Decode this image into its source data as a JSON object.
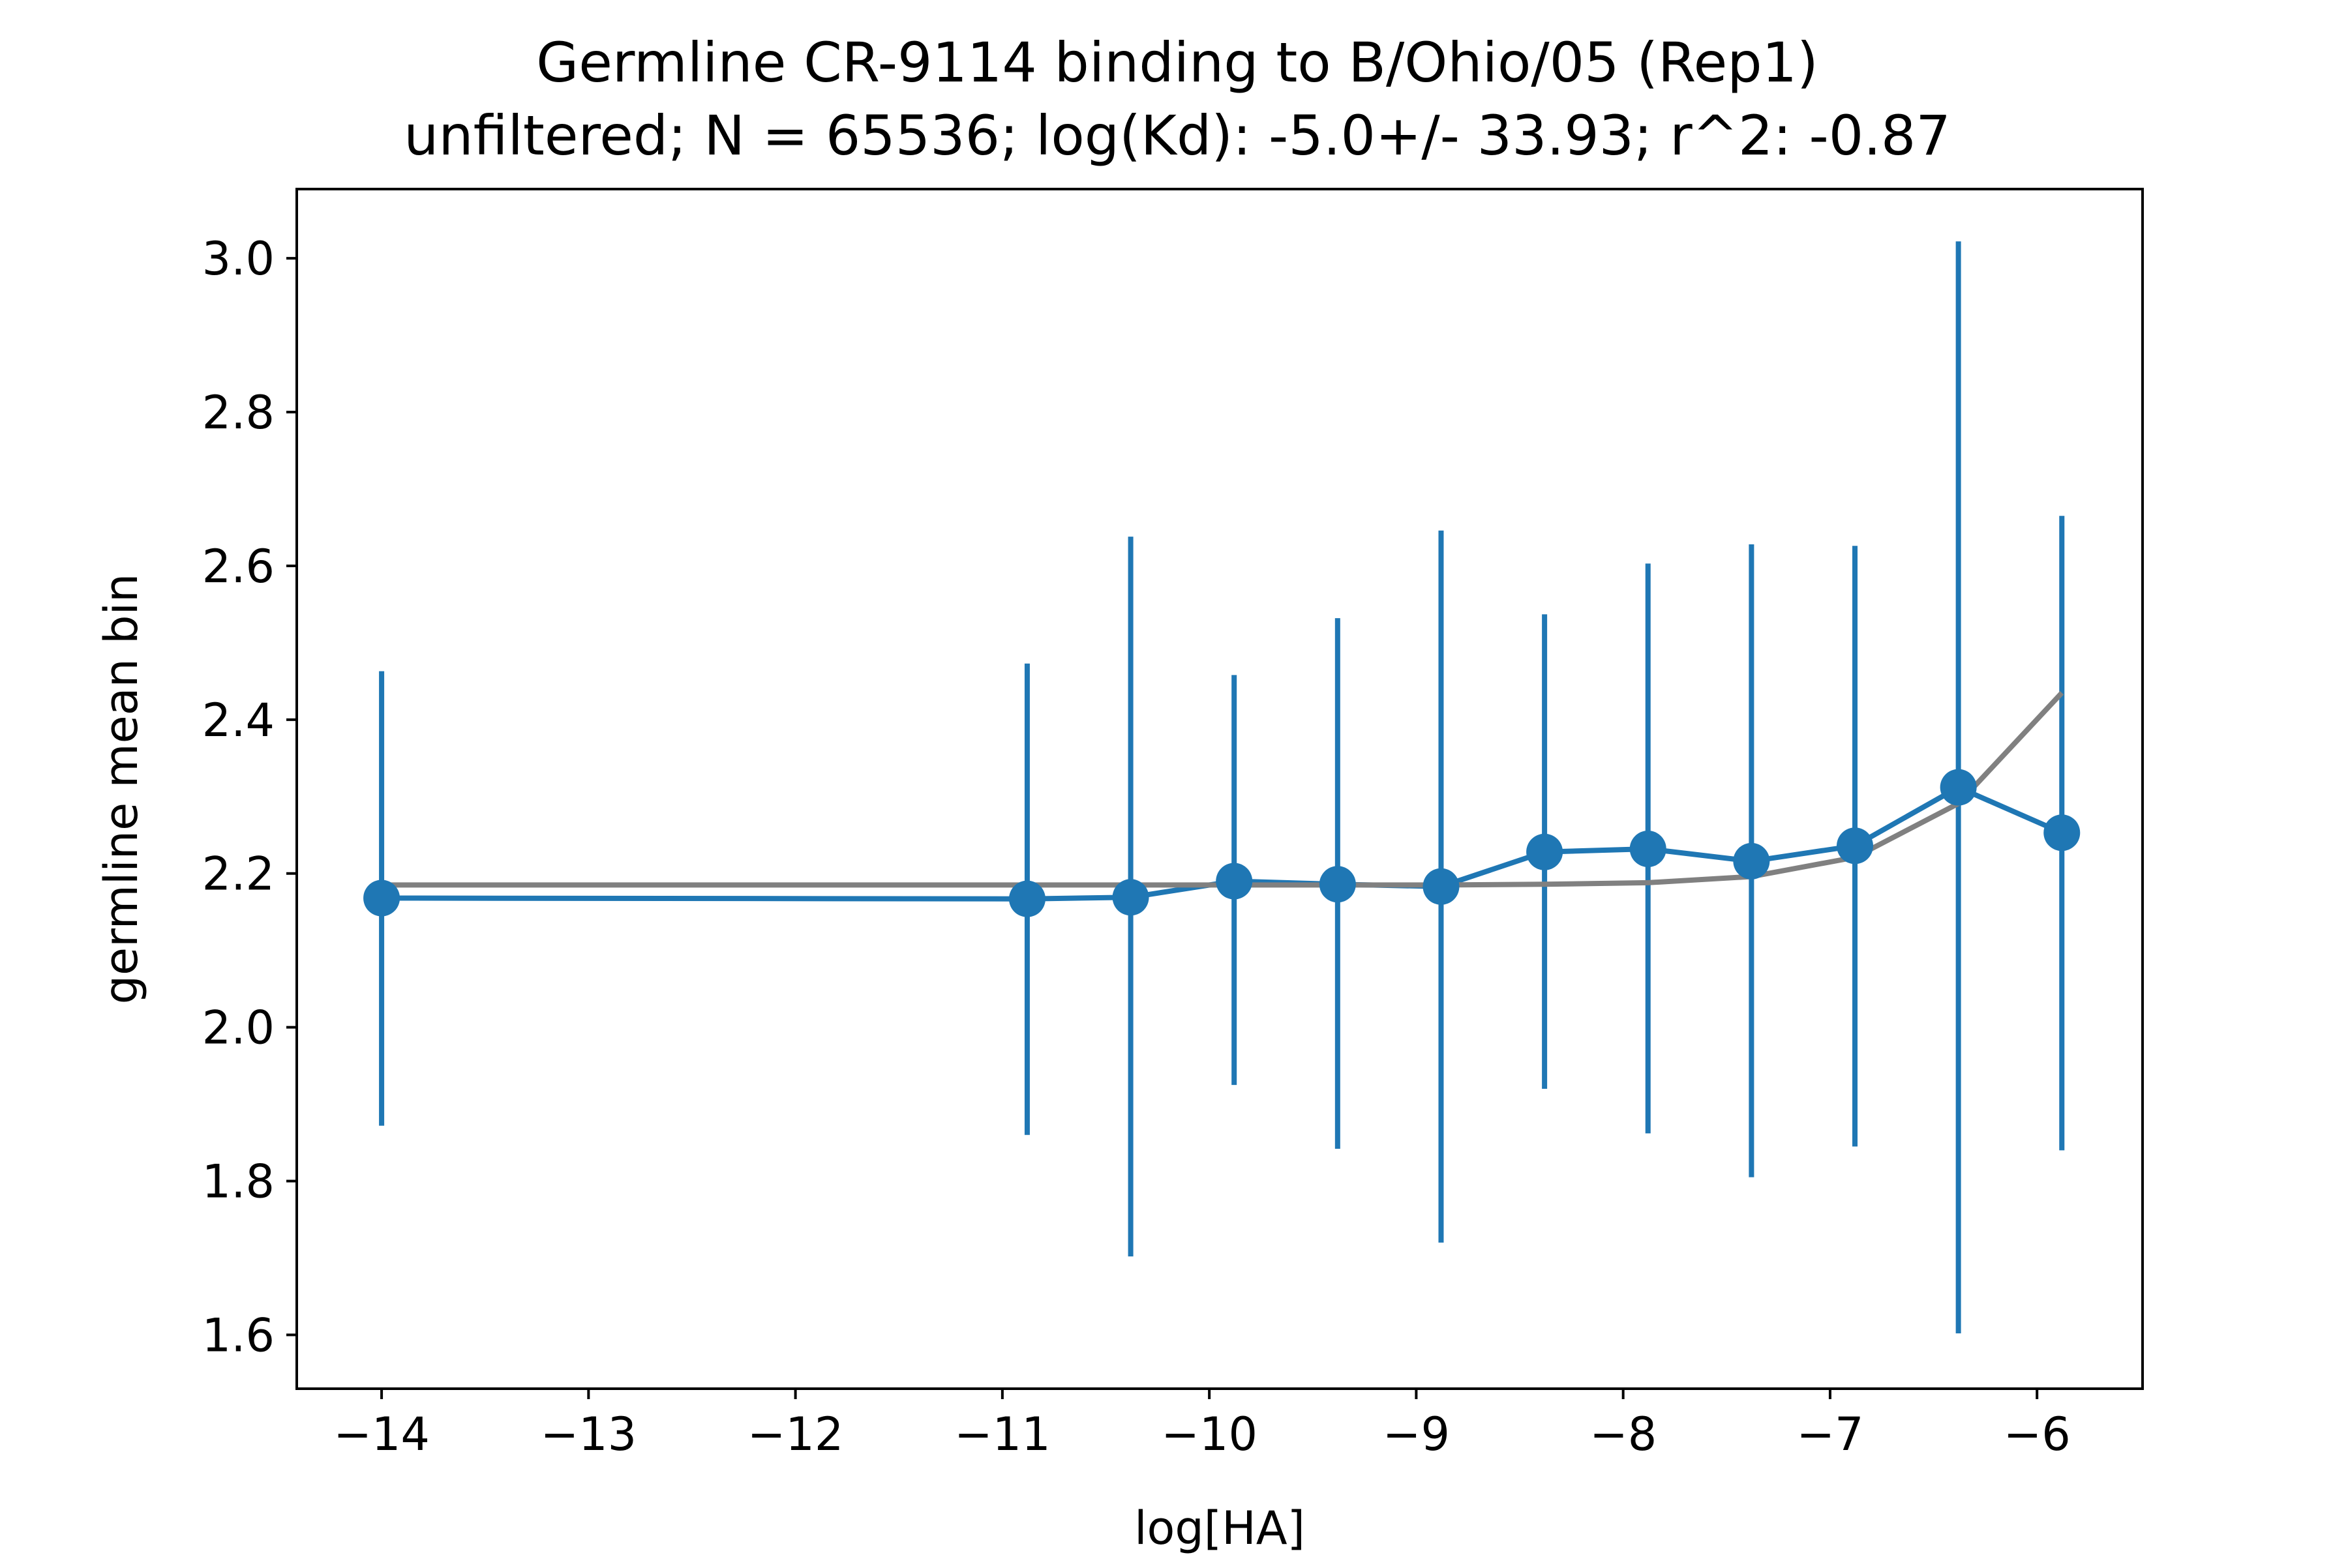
{
  "chart_data": {
    "type": "line",
    "title": "Germline CR-9114 binding to B/Ohio/05 (Rep1)",
    "subtitle": "unfiltered; N = 65536; log(Kd): -5.0+/- 33.93; r^2: -0.87",
    "xlabel": "log[HA]",
    "ylabel": "germline mean bin",
    "xlim": [
      -14.41,
      -5.49
    ],
    "ylim": [
      1.53,
      3.09
    ],
    "grid": false,
    "xticks": [
      {
        "value": -14,
        "label": "−14"
      },
      {
        "value": -13,
        "label": "−13"
      },
      {
        "value": -12,
        "label": "−12"
      },
      {
        "value": -11,
        "label": "−11"
      },
      {
        "value": -10,
        "label": "−10"
      },
      {
        "value": -9,
        "label": "−9"
      },
      {
        "value": -8,
        "label": "−8"
      },
      {
        "value": -7,
        "label": "−7"
      },
      {
        "value": -6,
        "label": "−6"
      }
    ],
    "yticks": [
      {
        "value": 1.6,
        "label": "1.6"
      },
      {
        "value": 1.8,
        "label": "1.8"
      },
      {
        "value": 2.0,
        "label": "2.0"
      },
      {
        "value": 2.2,
        "label": "2.2"
      },
      {
        "value": 2.4,
        "label": "2.4"
      },
      {
        "value": 2.6,
        "label": "2.6"
      },
      {
        "value": 2.8,
        "label": "2.8"
      },
      {
        "value": 3.0,
        "label": "3.0"
      }
    ],
    "series": [
      {
        "kind": "errorbar",
        "color": "#1f77b4",
        "x": [
          -14.0,
          -10.88,
          -10.38,
          -9.88,
          -9.38,
          -8.88,
          -8.38,
          -7.88,
          -7.38,
          -6.88,
          -6.38,
          -5.88
        ],
        "y": [
          2.168,
          2.167,
          2.169,
          2.19,
          2.186,
          2.183,
          2.228,
          2.232,
          2.216,
          2.236,
          2.312,
          2.253
        ],
        "err_low": [
          1.872,
          1.86,
          1.702,
          1.925,
          1.842,
          1.72,
          1.92,
          1.862,
          1.805,
          1.845,
          1.602,
          1.84
        ],
        "err_high": [
          2.463,
          2.473,
          2.638,
          2.458,
          2.532,
          2.646,
          2.537,
          2.603,
          2.628,
          2.626,
          3.022,
          2.665
        ]
      },
      {
        "kind": "fit",
        "color": "#808080",
        "x": [
          -14.0,
          -10.88,
          -10.38,
          -9.88,
          -9.38,
          -8.88,
          -8.38,
          -7.88,
          -7.38,
          -6.88,
          -6.38,
          -5.88
        ],
        "y": [
          2.185,
          2.185,
          2.185,
          2.185,
          2.185,
          2.185,
          2.186,
          2.188,
          2.196,
          2.221,
          2.291,
          2.435
        ]
      }
    ]
  }
}
